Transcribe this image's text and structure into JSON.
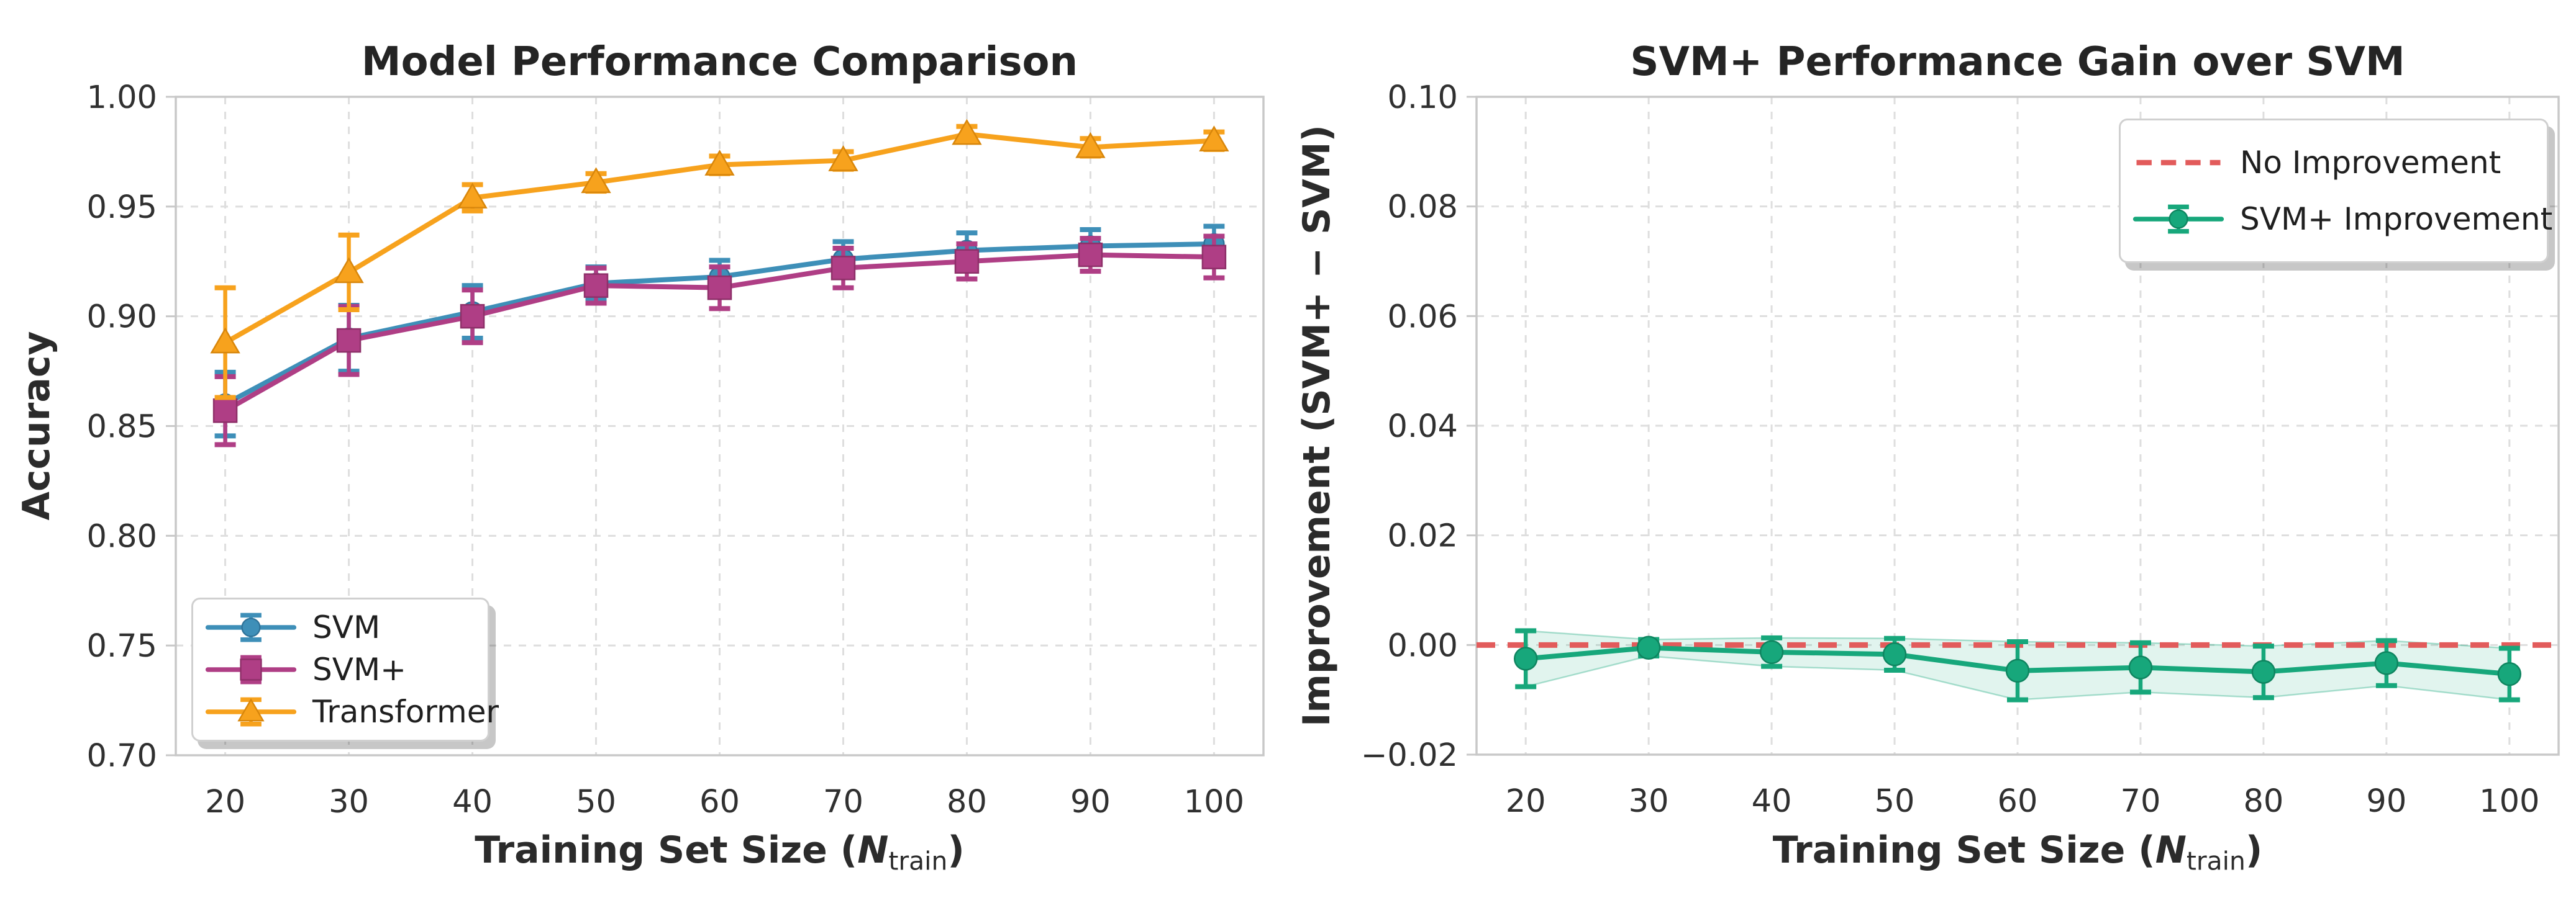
{
  "figure": {
    "background": "#ffffff",
    "grid_color": "#dedede",
    "frame_color": "#c8c8c8",
    "tick_text_color": "#303030"
  },
  "chart_data": [
    {
      "type": "line",
      "title": "Model Performance Comparison",
      "ylabel": "Accuracy",
      "xlabel_text": "Training Set Size (N_train)",
      "xlabel_parts": {
        "prefix": "Training Set Size (",
        "variable": "N",
        "subscript": "train",
        "suffix": ")"
      },
      "x": [
        20,
        30,
        40,
        50,
        60,
        70,
        80,
        90,
        100
      ],
      "xtick_labels": [
        "20",
        "30",
        "40",
        "50",
        "60",
        "70",
        "80",
        "90",
        "100"
      ],
      "yticks": [
        0.7,
        0.75,
        0.8,
        0.85,
        0.9,
        0.95,
        1.0
      ],
      "ytick_labels": [
        "0.70",
        "0.75",
        "0.80",
        "0.85",
        "0.90",
        "0.95",
        "1.00"
      ],
      "xlim": [
        16,
        104
      ],
      "ylim": [
        0.7,
        1.0
      ],
      "grid": true,
      "legend_position": "lower left",
      "series": [
        {
          "name": "SVM",
          "marker": "circle",
          "color": "#3e8fb8",
          "edge": "#2f7399",
          "values": [
            0.86,
            0.89,
            0.902,
            0.915,
            0.918,
            0.926,
            0.93,
            0.932,
            0.933
          ],
          "errors": [
            0.0145,
            0.015,
            0.012,
            0.0075,
            0.0075,
            0.008,
            0.008,
            0.0075,
            0.008
          ]
        },
        {
          "name": "SVM+",
          "marker": "square",
          "color": "#af3e85",
          "edge": "#8e3069",
          "values": [
            0.857,
            0.889,
            0.9,
            0.914,
            0.913,
            0.922,
            0.925,
            0.928,
            0.927
          ],
          "errors": [
            0.0155,
            0.0155,
            0.012,
            0.008,
            0.0095,
            0.009,
            0.008,
            0.0075,
            0.0095
          ]
        },
        {
          "name": "Transformer",
          "marker": "triangle",
          "color": "#f7a21d",
          "edge": "#d8860b",
          "values": [
            0.888,
            0.92,
            0.954,
            0.961,
            0.969,
            0.971,
            0.983,
            0.977,
            0.98
          ],
          "errors": [
            0.025,
            0.017,
            0.006,
            0.004,
            0.004,
            0.004,
            0.0035,
            0.004,
            0.004
          ]
        }
      ]
    },
    {
      "type": "line",
      "title": "SVM+ Performance Gain over SVM",
      "ylabel": "Improvement (SVM+ − SVM)",
      "xlabel_text": "Training Set Size (N_train)",
      "xlabel_parts": {
        "prefix": "Training Set Size (",
        "variable": "N",
        "subscript": "train",
        "suffix": ")"
      },
      "x": [
        20,
        30,
        40,
        50,
        60,
        70,
        80,
        90,
        100
      ],
      "xtick_labels": [
        "20",
        "30",
        "40",
        "50",
        "60",
        "70",
        "80",
        "90",
        "100"
      ],
      "yticks": [
        -0.02,
        0.0,
        0.02,
        0.04,
        0.06,
        0.08,
        0.1
      ],
      "ytick_labels": [
        "−0.02",
        "0.00",
        "0.02",
        "0.04",
        "0.06",
        "0.08",
        "0.10"
      ],
      "xlim": [
        16,
        104
      ],
      "ylim": [
        -0.02,
        0.1
      ],
      "grid": true,
      "legend_position": "upper right",
      "reference_line": {
        "y": 0.0,
        "label": "No Improvement",
        "color": "#e25b5b",
        "style": "dashed"
      },
      "series": [
        {
          "name": "SVM+ Improvement",
          "marker": "circle",
          "color": "#17a77b",
          "edge": "#0f8560",
          "band": true,
          "band_opacity": 0.13,
          "values": [
            -0.0025,
            -0.0005,
            -0.0013,
            -0.0017,
            -0.0047,
            -0.0041,
            -0.0049,
            -0.0033,
            -0.0053
          ],
          "errors": [
            0.0051,
            0.0015,
            0.0026,
            0.0029,
            0.0053,
            0.0045,
            0.0047,
            0.0041,
            0.0047
          ]
        }
      ]
    }
  ]
}
